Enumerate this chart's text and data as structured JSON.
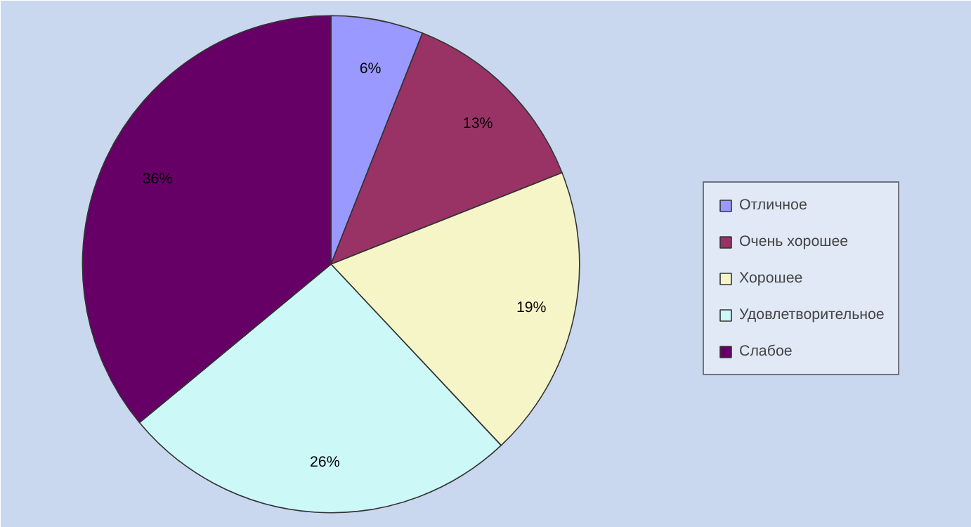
{
  "chart_data": {
    "type": "pie",
    "categories": [
      "Отличное",
      "Очень хорошее",
      "Хорошее",
      "Удовлетворительное",
      "Слабое"
    ],
    "values": [
      6,
      13,
      19,
      26,
      36
    ],
    "colors": [
      "#9999ff",
      "#993366",
      "#f5f5c8",
      "#ccf8f8",
      "#660066"
    ],
    "value_labels": [
      "6%",
      "13%",
      "19%",
      "26%",
      "36%"
    ],
    "legend": "right"
  }
}
